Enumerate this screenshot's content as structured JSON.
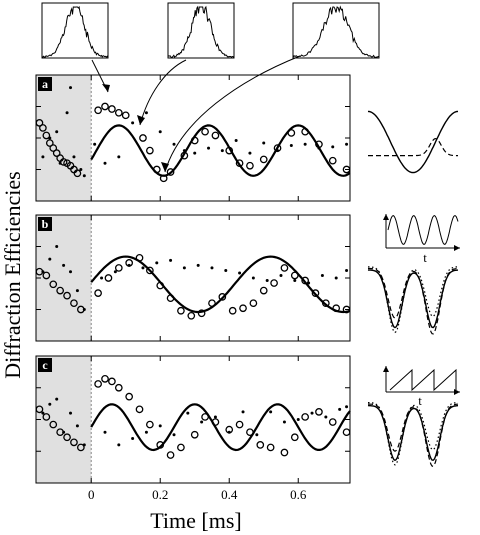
{
  "figure": {
    "ylabel": "Diffraction Efficiencies",
    "xlabel": "Time [ms]",
    "x_ticks": [
      "0",
      "0.2",
      "0.4",
      "0.6"
    ]
  },
  "chart_data": [
    {
      "panel": "a",
      "type": "scatter",
      "xlim": [
        -0.16,
        0.75
      ],
      "x_ticks": [
        0,
        0.2,
        0.4,
        0.6
      ],
      "shaded_region_x": [
        -0.16,
        0.0
      ],
      "series": [
        {
          "marker": "open-circle",
          "x": [
            -0.15,
            -0.14,
            -0.13,
            -0.12,
            -0.11,
            -0.1,
            -0.09,
            -0.08,
            -0.07,
            -0.06,
            -0.05,
            -0.04,
            0.02,
            0.04,
            0.06,
            0.08,
            0.1,
            0.15,
            0.17,
            0.19,
            0.21,
            0.23,
            0.27,
            0.3,
            0.33,
            0.36,
            0.4,
            0.43,
            0.46,
            0.5,
            0.54,
            0.58,
            0.62,
            0.66,
            0.7,
            0.74
          ],
          "y": [
            0.62,
            0.58,
            0.52,
            0.46,
            0.42,
            0.38,
            0.34,
            0.31,
            0.3,
            0.28,
            0.25,
            0.22,
            0.72,
            0.75,
            0.73,
            0.7,
            0.68,
            0.5,
            0.4,
            0.25,
            0.18,
            0.23,
            0.36,
            0.48,
            0.55,
            0.52,
            0.4,
            0.3,
            0.28,
            0.33,
            0.42,
            0.54,
            0.55,
            0.45,
            0.32,
            0.25
          ]
        },
        {
          "marker": "dot",
          "x": [
            -0.14,
            -0.12,
            -0.1,
            -0.09,
            -0.07,
            -0.06,
            -0.05,
            -0.03,
            -0.02,
            0.01,
            0.04,
            0.08,
            0.12,
            0.16,
            0.2,
            0.24,
            0.27,
            0.3,
            0.34,
            0.38,
            0.42,
            0.46,
            0.5,
            0.54,
            0.58,
            0.62,
            0.66,
            0.7,
            0.74
          ],
          "y": [
            0.35,
            0.5,
            0.55,
            0.3,
            0.7,
            0.9,
            0.35,
            0.25,
            0.2,
            0.45,
            0.3,
            0.35,
            0.62,
            0.7,
            0.55,
            0.45,
            0.4,
            0.38,
            0.42,
            0.4,
            0.48,
            0.38,
            0.46,
            0.4,
            0.44,
            0.45,
            0.42,
            0.43,
            0.45
          ]
        }
      ],
      "fit": {
        "amplitude": 0.2,
        "period": 0.26,
        "offset": 0.4,
        "phase_peak_x": 0.08
      }
    },
    {
      "panel": "b",
      "type": "scatter",
      "xlim": [
        -0.16,
        0.75
      ],
      "x_ticks": [
        0,
        0.2,
        0.4,
        0.6
      ],
      "shaded_region_x": [
        -0.16,
        0.0
      ],
      "series": [
        {
          "marker": "open-circle",
          "x": [
            -0.15,
            -0.13,
            -0.11,
            -0.09,
            -0.07,
            -0.05,
            -0.03,
            0.02,
            0.05,
            0.08,
            0.11,
            0.14,
            0.17,
            0.2,
            0.23,
            0.26,
            0.29,
            0.32,
            0.35,
            0.38,
            0.41,
            0.44,
            0.47,
            0.5,
            0.53,
            0.56,
            0.59,
            0.62,
            0.65,
            0.68,
            0.71,
            0.74
          ],
          "y": [
            0.55,
            0.52,
            0.45,
            0.4,
            0.36,
            0.3,
            0.25,
            0.38,
            0.5,
            0.58,
            0.62,
            0.66,
            0.56,
            0.44,
            0.34,
            0.24,
            0.2,
            0.22,
            0.3,
            0.35,
            0.24,
            0.26,
            0.3,
            0.4,
            0.46,
            0.58,
            0.52,
            0.48,
            0.38,
            0.3,
            0.26,
            0.25
          ]
        },
        {
          "marker": "dot",
          "x": [
            -0.14,
            -0.12,
            -0.1,
            -0.08,
            -0.06,
            -0.04,
            -0.02,
            0.03,
            0.07,
            0.11,
            0.15,
            0.19,
            0.23,
            0.27,
            0.31,
            0.35,
            0.39,
            0.43,
            0.47,
            0.51,
            0.55,
            0.59,
            0.63,
            0.67,
            0.71,
            0.74
          ],
          "y": [
            0.55,
            0.65,
            0.75,
            0.6,
            0.55,
            0.4,
            0.25,
            0.5,
            0.55,
            0.6,
            0.58,
            0.62,
            0.64,
            0.58,
            0.6,
            0.58,
            0.56,
            0.54,
            0.5,
            0.48,
            0.52,
            0.48,
            0.46,
            0.52,
            0.5,
            0.56
          ]
        }
      ],
      "fit": {
        "amplitude": 0.22,
        "period": 0.42,
        "offset": 0.45,
        "phase_peak_x": 0.1
      }
    },
    {
      "panel": "c",
      "type": "scatter",
      "xlim": [
        -0.16,
        0.75
      ],
      "x_ticks": [
        0,
        0.2,
        0.4,
        0.6
      ],
      "shaded_region_x": [
        -0.16,
        0.0
      ],
      "series": [
        {
          "marker": "open-circle",
          "x": [
            -0.15,
            -0.13,
            -0.11,
            -0.09,
            -0.07,
            -0.05,
            -0.03,
            0.02,
            0.04,
            0.06,
            0.08,
            0.11,
            0.14,
            0.17,
            0.2,
            0.23,
            0.26,
            0.3,
            0.33,
            0.36,
            0.4,
            0.43,
            0.46,
            0.49,
            0.52,
            0.56,
            0.59,
            0.62,
            0.66,
            0.7,
            0.74
          ],
          "y": [
            0.58,
            0.52,
            0.46,
            0.4,
            0.36,
            0.32,
            0.28,
            0.78,
            0.82,
            0.8,
            0.75,
            0.68,
            0.58,
            0.46,
            0.3,
            0.22,
            0.28,
            0.38,
            0.52,
            0.48,
            0.42,
            0.46,
            0.4,
            0.3,
            0.28,
            0.24,
            0.36,
            0.52,
            0.56,
            0.48,
            0.4
          ]
        },
        {
          "marker": "dot",
          "x": [
            -0.14,
            -0.12,
            -0.1,
            -0.08,
            -0.06,
            -0.04,
            -0.02,
            0.04,
            0.08,
            0.12,
            0.16,
            0.2,
            0.24,
            0.28,
            0.32,
            0.36,
            0.4,
            0.44,
            0.48,
            0.52,
            0.56,
            0.6,
            0.64,
            0.68,
            0.72,
            0.74
          ],
          "y": [
            0.55,
            0.62,
            0.66,
            0.4,
            0.55,
            0.45,
            0.3,
            0.4,
            0.3,
            0.35,
            0.4,
            0.45,
            0.38,
            0.55,
            0.48,
            0.52,
            0.4,
            0.56,
            0.38,
            0.56,
            0.48,
            0.5,
            0.55,
            0.52,
            0.58,
            0.6
          ]
        }
      ],
      "fit": {
        "amplitude": 0.18,
        "period": 0.24,
        "offset": 0.44,
        "phase_peak_x": 0.06
      }
    }
  ],
  "insets": {
    "t_label": "t",
    "labels": [
      "a",
      "b",
      "c"
    ]
  },
  "colors": {
    "shade": "#e0e0e0",
    "ink": "#000000"
  }
}
